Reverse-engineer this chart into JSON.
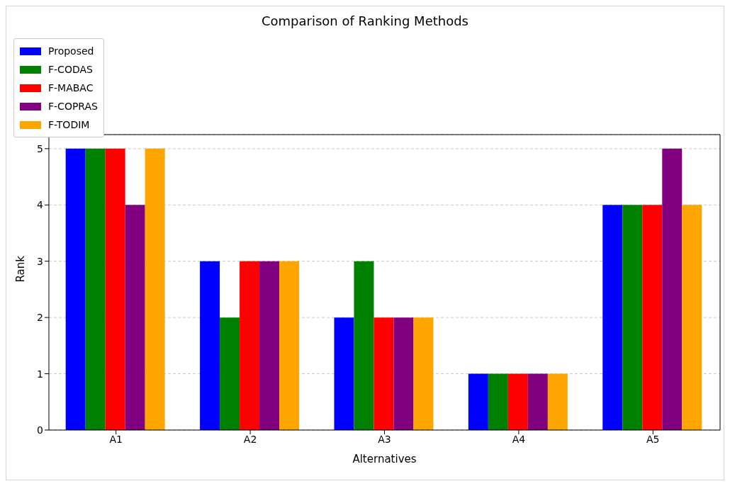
{
  "chart_data": {
    "type": "bar",
    "title": "Comparison of Ranking Methods",
    "xlabel": "Alternatives",
    "ylabel": "Rank",
    "categories": [
      "A1",
      "A2",
      "A3",
      "A4",
      "A5"
    ],
    "series": [
      {
        "name": "Proposed",
        "color": "#0000ff",
        "values": [
          5,
          3,
          2,
          1,
          4
        ]
      },
      {
        "name": "F-CODAS",
        "color": "#008000",
        "values": [
          5,
          2,
          3,
          1,
          4
        ]
      },
      {
        "name": "F-MABAC",
        "color": "#ff0000",
        "values": [
          5,
          3,
          2,
          1,
          4
        ]
      },
      {
        "name": "F-COPRAS",
        "color": "#800080",
        "values": [
          4,
          3,
          2,
          1,
          5
        ]
      },
      {
        "name": "F-TODIM",
        "color": "#ffa500",
        "values": [
          5,
          3,
          2,
          1,
          4
        ]
      }
    ],
    "ylim": [
      0,
      5.25
    ],
    "yticks": [
      0,
      1,
      2,
      3,
      4,
      5
    ],
    "grid": "y",
    "legend": "top"
  }
}
